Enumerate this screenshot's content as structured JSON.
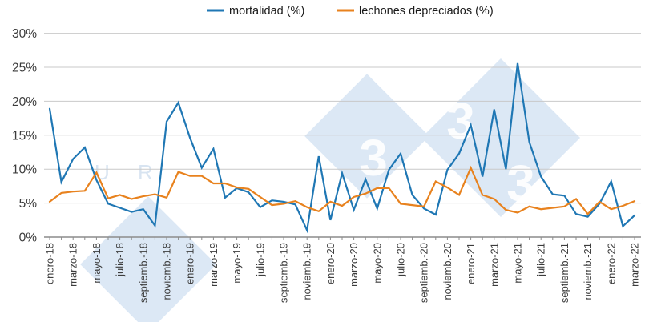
{
  "chart_data": {
    "type": "line",
    "title": "",
    "xlabel": "",
    "ylabel": "",
    "ylim": [
      0,
      30
    ],
    "y_tick_labels": [
      "0%",
      "5%",
      "10%",
      "15%",
      "20%",
      "25%",
      "30%"
    ],
    "grid": "horizontal",
    "legend_position": "top-center",
    "x_months": [
      "ene-18",
      "feb-18",
      "mar-18",
      "abr-18",
      "may-18",
      "jun-18",
      "jul-18",
      "ago-18",
      "sep-18",
      "oct-18",
      "nov-18",
      "dic-18",
      "ene-19",
      "feb-19",
      "mar-19",
      "abr-19",
      "may-19",
      "jun-19",
      "jul-19",
      "ago-19",
      "sep-19",
      "oct-19",
      "nov-19",
      "dic-19",
      "ene-20",
      "feb-20",
      "mar-20",
      "abr-20",
      "may-20",
      "jun-20",
      "jul-20",
      "ago-20",
      "sep-20",
      "oct-20",
      "nov-20",
      "dic-20",
      "ene-21",
      "feb-21",
      "mar-21",
      "abr-21",
      "may-21",
      "jun-21",
      "jul-21",
      "ago-21",
      "sep-21",
      "oct-21",
      "nov-21",
      "dic-21",
      "ene-22",
      "feb-22",
      "mar-22"
    ],
    "x_tick_labels_shown": [
      "enero-18",
      "marzo-18",
      "mayo-18",
      "julio-18",
      "septiemb.-18",
      "noviemb.-18",
      "enero-19",
      "marzo-19",
      "mayo-19",
      "julio-19",
      "septiemb.-19",
      "noviemb.-19",
      "enero-20",
      "marzo-20",
      "mayo-20",
      "julio-20",
      "septiemb.-20",
      "noviemb.-20",
      "enero-21",
      "marzo-21",
      "mayo-21",
      "julio-21",
      "septiemb.-21",
      "noviemb.-21",
      "enero-22",
      "marzo-22"
    ],
    "series": [
      {
        "name": "mortalidad (%)",
        "color": "#1f77b4",
        "values": [
          18.9,
          8.1,
          11.5,
          13.2,
          8.4,
          4.9,
          4.3,
          3.7,
          4.1,
          1.7,
          17.0,
          19.8,
          14.6,
          10.2,
          13.0,
          5.8,
          7.2,
          6.6,
          4.4,
          5.4,
          5.2,
          4.8,
          1.0,
          11.9,
          2.5,
          9.4,
          4.0,
          8.5,
          4.2,
          9.9,
          12.3,
          6.2,
          4.2,
          3.3,
          9.9,
          12.3,
          16.5,
          8.9,
          18.8,
          10.0,
          25.6,
          14.0,
          8.9,
          6.3,
          6.1,
          3.4,
          3.0,
          4.9,
          8.2,
          1.6,
          3.2
        ]
      },
      {
        "name": "lechones depreciados (%)",
        "color": "#e8821e",
        "values": [
          5.2,
          6.5,
          6.7,
          6.8,
          9.5,
          5.7,
          6.2,
          5.6,
          6.0,
          6.3,
          5.8,
          9.6,
          9.0,
          9.0,
          7.9,
          7.9,
          7.3,
          7.1,
          5.9,
          4.7,
          4.9,
          5.3,
          4.4,
          3.8,
          5.2,
          4.6,
          5.9,
          6.4,
          7.2,
          7.2,
          4.9,
          4.7,
          4.5,
          8.2,
          7.3,
          6.2,
          10.2,
          6.2,
          5.6,
          4.0,
          3.6,
          4.5,
          4.1,
          4.3,
          4.5,
          5.6,
          3.4,
          5.2,
          4.1,
          4.6,
          5.3
        ]
      }
    ]
  },
  "legend": {
    "mortalidad_label": "mortalidad (%)",
    "lechones_label": "lechones depreciados (%)"
  },
  "watermark": {
    "glyph": "3",
    "side_text": "U R",
    "diamond_color": "#dce8f5",
    "glyph_color": "#ffffff"
  },
  "colors": {
    "grid": "#c9c9c9",
    "axis": "#8c8c8c",
    "text": "#3c3c3c"
  }
}
